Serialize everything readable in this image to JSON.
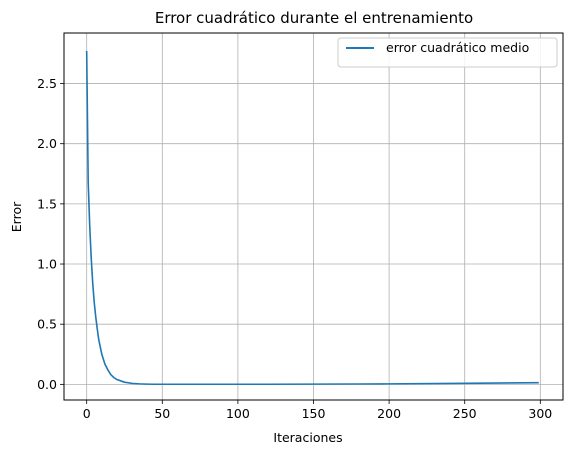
{
  "chart_data": {
    "type": "line",
    "title": "Error cuadrático durante el entrenamiento",
    "xlabel": "Iteraciones",
    "ylabel": "Error",
    "xlim": [
      -15,
      315
    ],
    "ylim": [
      -0.13,
      2.92
    ],
    "xticks": [
      0,
      50,
      100,
      150,
      200,
      250,
      300
    ],
    "xtick_labels": [
      "0",
      "50",
      "100",
      "150",
      "200",
      "250",
      "300"
    ],
    "yticks": [
      0.0,
      0.5,
      1.0,
      1.5,
      2.0,
      2.5
    ],
    "ytick_labels": [
      "0.0",
      "0.5",
      "1.0",
      "1.5",
      "2.0",
      "2.5"
    ],
    "grid": true,
    "legend_position": "top-right",
    "series": [
      {
        "name": "error cuadrático medio",
        "color": "#1f77b4",
        "x": [
          0,
          1,
          2,
          3,
          4,
          5,
          6,
          7,
          8,
          9,
          10,
          12,
          14,
          16,
          18,
          20,
          25,
          30,
          35,
          40,
          45,
          50,
          60,
          70,
          80,
          100,
          120,
          150,
          180,
          200,
          220,
          250,
          270,
          299
        ],
        "y": [
          2.77,
          1.68,
          1.32,
          1.05,
          0.84,
          0.68,
          0.56,
          0.46,
          0.37,
          0.31,
          0.25,
          0.17,
          0.12,
          0.08,
          0.056,
          0.04,
          0.018,
          0.008,
          0.004,
          0.002,
          0.001,
          0.001,
          0.001,
          0.001,
          0.001,
          0.001,
          0.001,
          0.002,
          0.003,
          0.004,
          0.006,
          0.009,
          0.011,
          0.014
        ]
      }
    ]
  }
}
